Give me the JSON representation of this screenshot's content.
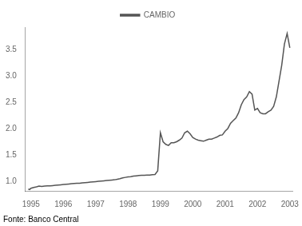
{
  "chart_data": {
    "type": "line",
    "x": [
      1994.917,
      1994.958,
      1995.0,
      1995.083,
      1995.167,
      1995.25,
      1995.333,
      1995.417,
      1995.5,
      1995.583,
      1995.667,
      1995.75,
      1995.833,
      1995.917,
      1996.0,
      1996.083,
      1996.167,
      1996.25,
      1996.333,
      1996.417,
      1996.5,
      1996.583,
      1996.667,
      1996.75,
      1996.833,
      1996.917,
      1997.0,
      1997.083,
      1997.167,
      1997.25,
      1997.333,
      1997.417,
      1997.5,
      1997.583,
      1997.667,
      1997.75,
      1997.833,
      1997.917,
      1998.0,
      1998.083,
      1998.167,
      1998.25,
      1998.333,
      1998.417,
      1998.5,
      1998.583,
      1998.667,
      1998.75,
      1998.833,
      1998.917,
      1999.0,
      1999.083,
      1999.167,
      1999.25,
      1999.333,
      1999.417,
      1999.5,
      1999.583,
      1999.667,
      1999.75,
      1999.833,
      1999.917,
      2000.0,
      2000.083,
      2000.167,
      2000.25,
      2000.333,
      2000.417,
      2000.5,
      2000.583,
      2000.667,
      2000.75,
      2000.833,
      2000.917,
      2001.0,
      2001.083,
      2001.167,
      2001.25,
      2001.333,
      2001.417,
      2001.5,
      2001.583,
      2001.667,
      2001.75,
      2001.833,
      2001.917,
      2002.0,
      2002.083,
      2002.167,
      2002.25,
      2002.333,
      2002.417,
      2002.5,
      2002.583,
      2002.667,
      2002.75,
      2002.833,
      2002.917,
      2003.0
    ],
    "series": [
      {
        "name": "CAMBIO",
        "color": "#555555",
        "values": [
          0.855,
          0.845,
          0.87,
          0.885,
          0.895,
          0.91,
          0.905,
          0.91,
          0.915,
          0.915,
          0.92,
          0.925,
          0.93,
          0.935,
          0.94,
          0.945,
          0.95,
          0.955,
          0.96,
          0.965,
          0.965,
          0.97,
          0.975,
          0.98,
          0.985,
          0.99,
          0.995,
          1.0,
          1.005,
          1.01,
          1.015,
          1.02,
          1.025,
          1.03,
          1.04,
          1.05,
          1.065,
          1.075,
          1.085,
          1.09,
          1.1,
          1.105,
          1.11,
          1.115,
          1.115,
          1.12,
          1.12,
          1.125,
          1.13,
          1.2,
          1.92,
          1.75,
          1.7,
          1.68,
          1.73,
          1.73,
          1.75,
          1.78,
          1.82,
          1.92,
          1.95,
          1.9,
          1.83,
          1.8,
          1.78,
          1.77,
          1.76,
          1.78,
          1.8,
          1.8,
          1.82,
          1.84,
          1.87,
          1.88,
          1.95,
          2.0,
          2.1,
          2.15,
          2.2,
          2.3,
          2.45,
          2.55,
          2.6,
          2.7,
          2.65,
          2.35,
          2.38,
          2.3,
          2.28,
          2.28,
          2.32,
          2.35,
          2.42,
          2.6,
          2.9,
          3.2,
          3.6,
          3.8,
          3.53
        ]
      }
    ],
    "xlim": [
      1994.83,
      2003.08
    ],
    "ylim": [
      0.82,
      3.92
    ],
    "xticks": [
      1995,
      1996,
      1997,
      1998,
      1999,
      2000,
      2001,
      2002,
      2003
    ],
    "yticks": [
      {
        "value": 1.0,
        "label": "1.0"
      },
      1.5,
      {
        "value": 2.0,
        "label": "2.0"
      },
      2.5,
      {
        "value": 3.0,
        "label": "3.0"
      },
      3.5
    ],
    "grid": false,
    "legend": "top",
    "annotation": "Fonte: Banco Central"
  }
}
